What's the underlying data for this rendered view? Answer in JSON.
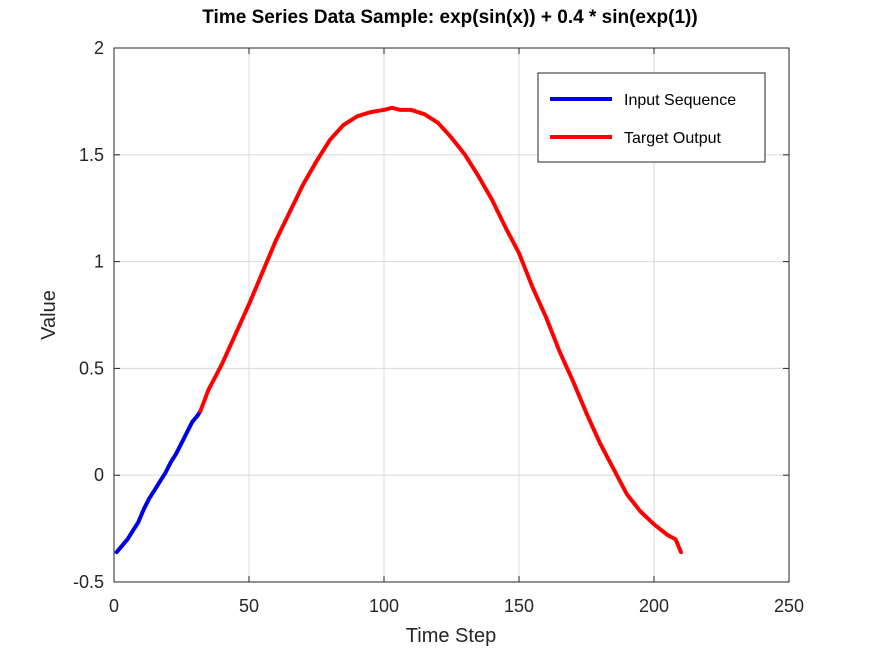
{
  "chart_data": {
    "type": "line",
    "title": "Time Series Data Sample: exp(sin(x)) + 0.4 * sin(exp(1))",
    "xlabel": "Time Step",
    "ylabel": "Value",
    "xlim": [
      0,
      250
    ],
    "ylim": [
      -0.5,
      2
    ],
    "xticks": [
      0,
      50,
      100,
      150,
      200,
      250
    ],
    "xtick_labels": [
      "0",
      "50",
      "100",
      "150",
      "200",
      "250"
    ],
    "yticks": [
      -0.5,
      0,
      0.5,
      1,
      1.5,
      2
    ],
    "ytick_labels": [
      "-0.5",
      "0",
      "0.5",
      "1",
      "1.5",
      "2"
    ],
    "grid": true,
    "legend_position": "top-right",
    "series": [
      {
        "name": "Input Sequence",
        "color": "#0000e6",
        "x": [
          1,
          3,
          5,
          7,
          9,
          11,
          13,
          15,
          17,
          19,
          21,
          23,
          25,
          27,
          29,
          31,
          32
        ],
        "y": [
          -0.36,
          -0.33,
          -0.3,
          -0.26,
          -0.22,
          -0.16,
          -0.11,
          -0.07,
          -0.03,
          0.01,
          0.06,
          0.1,
          0.15,
          0.2,
          0.25,
          0.28,
          0.3
        ]
      },
      {
        "name": "Target Output",
        "color": "#ff0000",
        "x": [
          32,
          35,
          40,
          45,
          50,
          55,
          60,
          65,
          70,
          75,
          80,
          85,
          90,
          95,
          100,
          103,
          106,
          110,
          115,
          120,
          125,
          130,
          135,
          140,
          145,
          150,
          155,
          160,
          165,
          170,
          175,
          180,
          185,
          190,
          195,
          200,
          205,
          208,
          210
        ],
        "y": [
          0.3,
          0.4,
          0.52,
          0.66,
          0.8,
          0.95,
          1.1,
          1.23,
          1.36,
          1.47,
          1.57,
          1.64,
          1.68,
          1.7,
          1.71,
          1.72,
          1.71,
          1.71,
          1.69,
          1.65,
          1.58,
          1.5,
          1.4,
          1.29,
          1.16,
          1.04,
          0.88,
          0.74,
          0.58,
          0.44,
          0.29,
          0.15,
          0.03,
          -0.09,
          -0.17,
          -0.23,
          -0.28,
          -0.3,
          -0.36
        ]
      }
    ]
  }
}
